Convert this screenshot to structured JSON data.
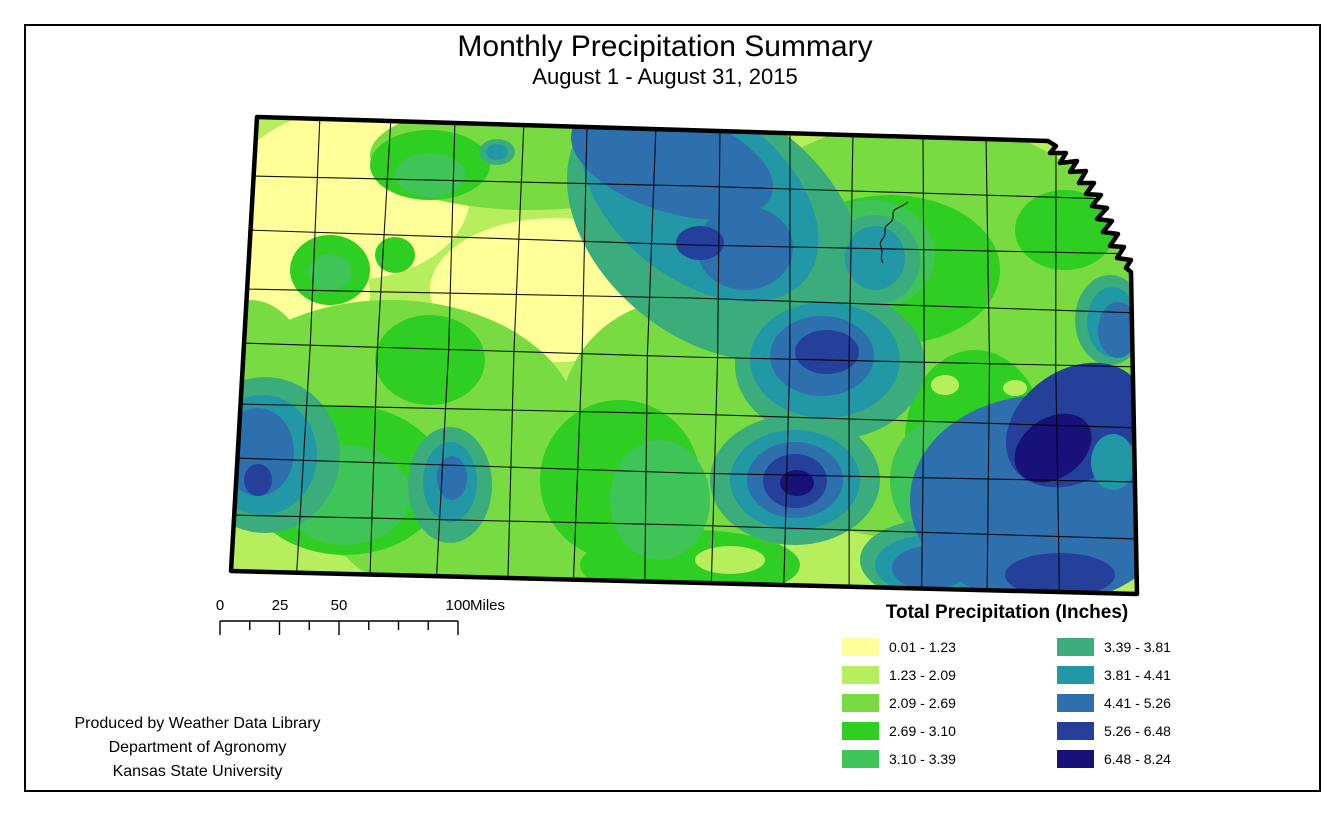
{
  "title": "Monthly Precipitation Summary",
  "subtitle": "August 1 - August 31, 2015",
  "map_legend": {
    "title": "Total Precipitation (Inches)",
    "items": [
      {
        "label": "0.01 - 1.23",
        "color": "#FFFF99"
      },
      {
        "label": "1.23 - 2.09",
        "color": "#B7EE5E"
      },
      {
        "label": "2.09 - 2.69",
        "color": "#77DB41"
      },
      {
        "label": "2.69 - 3.10",
        "color": "#2FCE22"
      },
      {
        "label": "3.10 - 3.39",
        "color": "#3FC457"
      },
      {
        "label": "3.39 - 3.81",
        "color": "#3BAD7C"
      },
      {
        "label": "3.81 - 4.41",
        "color": "#2297A6"
      },
      {
        "label": "4.41 - 5.26",
        "color": "#2E6FAE"
      },
      {
        "label": "5.26 - 6.48",
        "color": "#24409B"
      },
      {
        "label": "6.48 - 8.24",
        "color": "#171179"
      }
    ]
  },
  "scale_bar": {
    "tick_labels": [
      "0",
      "25",
      "50",
      "100"
    ],
    "unit_label": "Miles"
  },
  "attribution": {
    "lines": [
      "Produced by Weather Data Library",
      "Department of Agronomy",
      "Kansas State University"
    ]
  }
}
